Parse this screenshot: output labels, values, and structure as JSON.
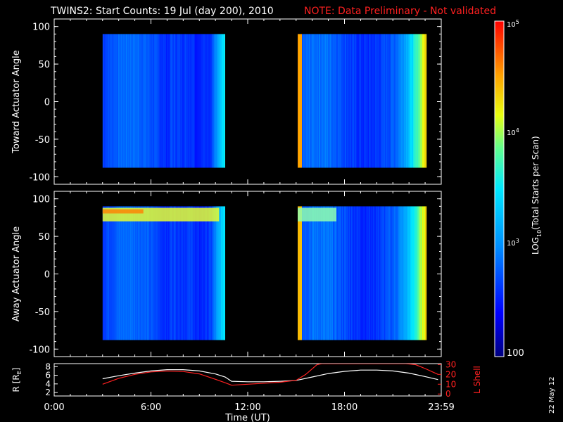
{
  "header": {
    "title": "TWINS2: Start Counts: 19 Jul (day 200), 2010",
    "note": "NOTE: Data Preliminary - Not validated",
    "note_color": "#ff2020"
  },
  "stamp": "22 May 12",
  "chart_data": [
    {
      "type": "heatmap",
      "panel": "toward",
      "ylabel": "Toward Actuator Angle",
      "ylim": [
        -110,
        110
      ],
      "yticks": [
        "100",
        "50",
        "0",
        "-50",
        "-100"
      ],
      "xlim_hours": [
        0,
        24
      ],
      "data_blocks_hours": [
        [
          3.0,
          10.6
        ],
        [
          15.1,
          23.1
        ]
      ],
      "angle_range": [
        -88,
        90
      ],
      "colormap": "rainbow (blue → cyan → yellow → red)",
      "background_level": "blue (~10^2.5)"
    },
    {
      "type": "heatmap",
      "panel": "away",
      "ylabel": "Away Actuator Angle",
      "ylim": [
        -110,
        110
      ],
      "yticks": [
        "100",
        "50",
        "0",
        "-50",
        "-100"
      ],
      "xlim_hours": [
        0,
        24
      ],
      "data_blocks_hours": [
        [
          3.0,
          10.6
        ],
        [
          15.1,
          23.1
        ]
      ],
      "angle_range": [
        -88,
        90
      ],
      "colormap": "rainbow (blue → cyan → yellow → red)",
      "background_level": "blue (~10^2.5)"
    },
    {
      "type": "line",
      "panel": "orbit",
      "ylabel_left": "R [R",
      "ylabel_left_sub": "E",
      "ylabel_left_end": "]",
      "ylabel_right": "L Shell",
      "left_ticks": [
        "8",
        "6",
        "4",
        "2"
      ],
      "left_ylim": [
        1.2,
        8.7
      ],
      "right_ticks": [
        "30",
        "20",
        "10",
        "0"
      ],
      "right_ylim": [
        -2,
        31
      ],
      "right_color": "#ff2020",
      "series": [
        {
          "color": "#ffffff",
          "x": [
            3.0,
            4.0,
            5.0,
            6.0,
            7.0,
            8.0,
            9.0,
            10.0,
            10.6,
            11.0,
            12.0,
            13.0,
            14.0,
            15.0,
            16.0,
            17.0,
            18.0,
            19.0,
            20.0,
            21.0,
            22.0,
            23.0,
            23.8
          ],
          "y": [
            5.2,
            5.9,
            6.5,
            7.0,
            7.3,
            7.3,
            7.0,
            6.3,
            5.6,
            4.6,
            4.5,
            4.5,
            4.6,
            4.8,
            5.6,
            6.4,
            6.9,
            7.2,
            7.2,
            7.0,
            6.5,
            5.7,
            5.0
          ]
        },
        {
          "color": "#ff2020",
          "x": [
            3.0,
            4.0,
            5.0,
            6.0,
            7.0,
            8.0,
            9.0,
            10.0,
            10.6,
            11.0,
            12.0,
            13.0,
            14.0,
            15.0,
            15.6,
            16.3,
            16.6,
            21.8,
            22.4,
            23.0,
            23.8
          ],
          "y": [
            10,
            16,
            20,
            22.5,
            23.5,
            23,
            20.5,
            15,
            11.5,
            9,
            10,
            11,
            12,
            14,
            20,
            30,
            31,
            31,
            30,
            26,
            20
          ]
        }
      ]
    },
    {
      "type": "colorbar",
      "label": "LOG",
      "label_sub": "10",
      "label_rest": "(Total Starts per Scan)",
      "tick_labels": [
        "10",
        "10",
        "10",
        "100"
      ],
      "tick_exponents": [
        "5",
        "4",
        "3",
        ""
      ],
      "range_log10": [
        2,
        5
      ]
    }
  ],
  "time_axis": {
    "label": "Time (UT)",
    "ticks": [
      "0:00",
      "6:00",
      "12:00",
      "18:00",
      "23:59"
    ],
    "tick_hours": [
      0,
      6,
      12,
      18,
      24
    ]
  }
}
